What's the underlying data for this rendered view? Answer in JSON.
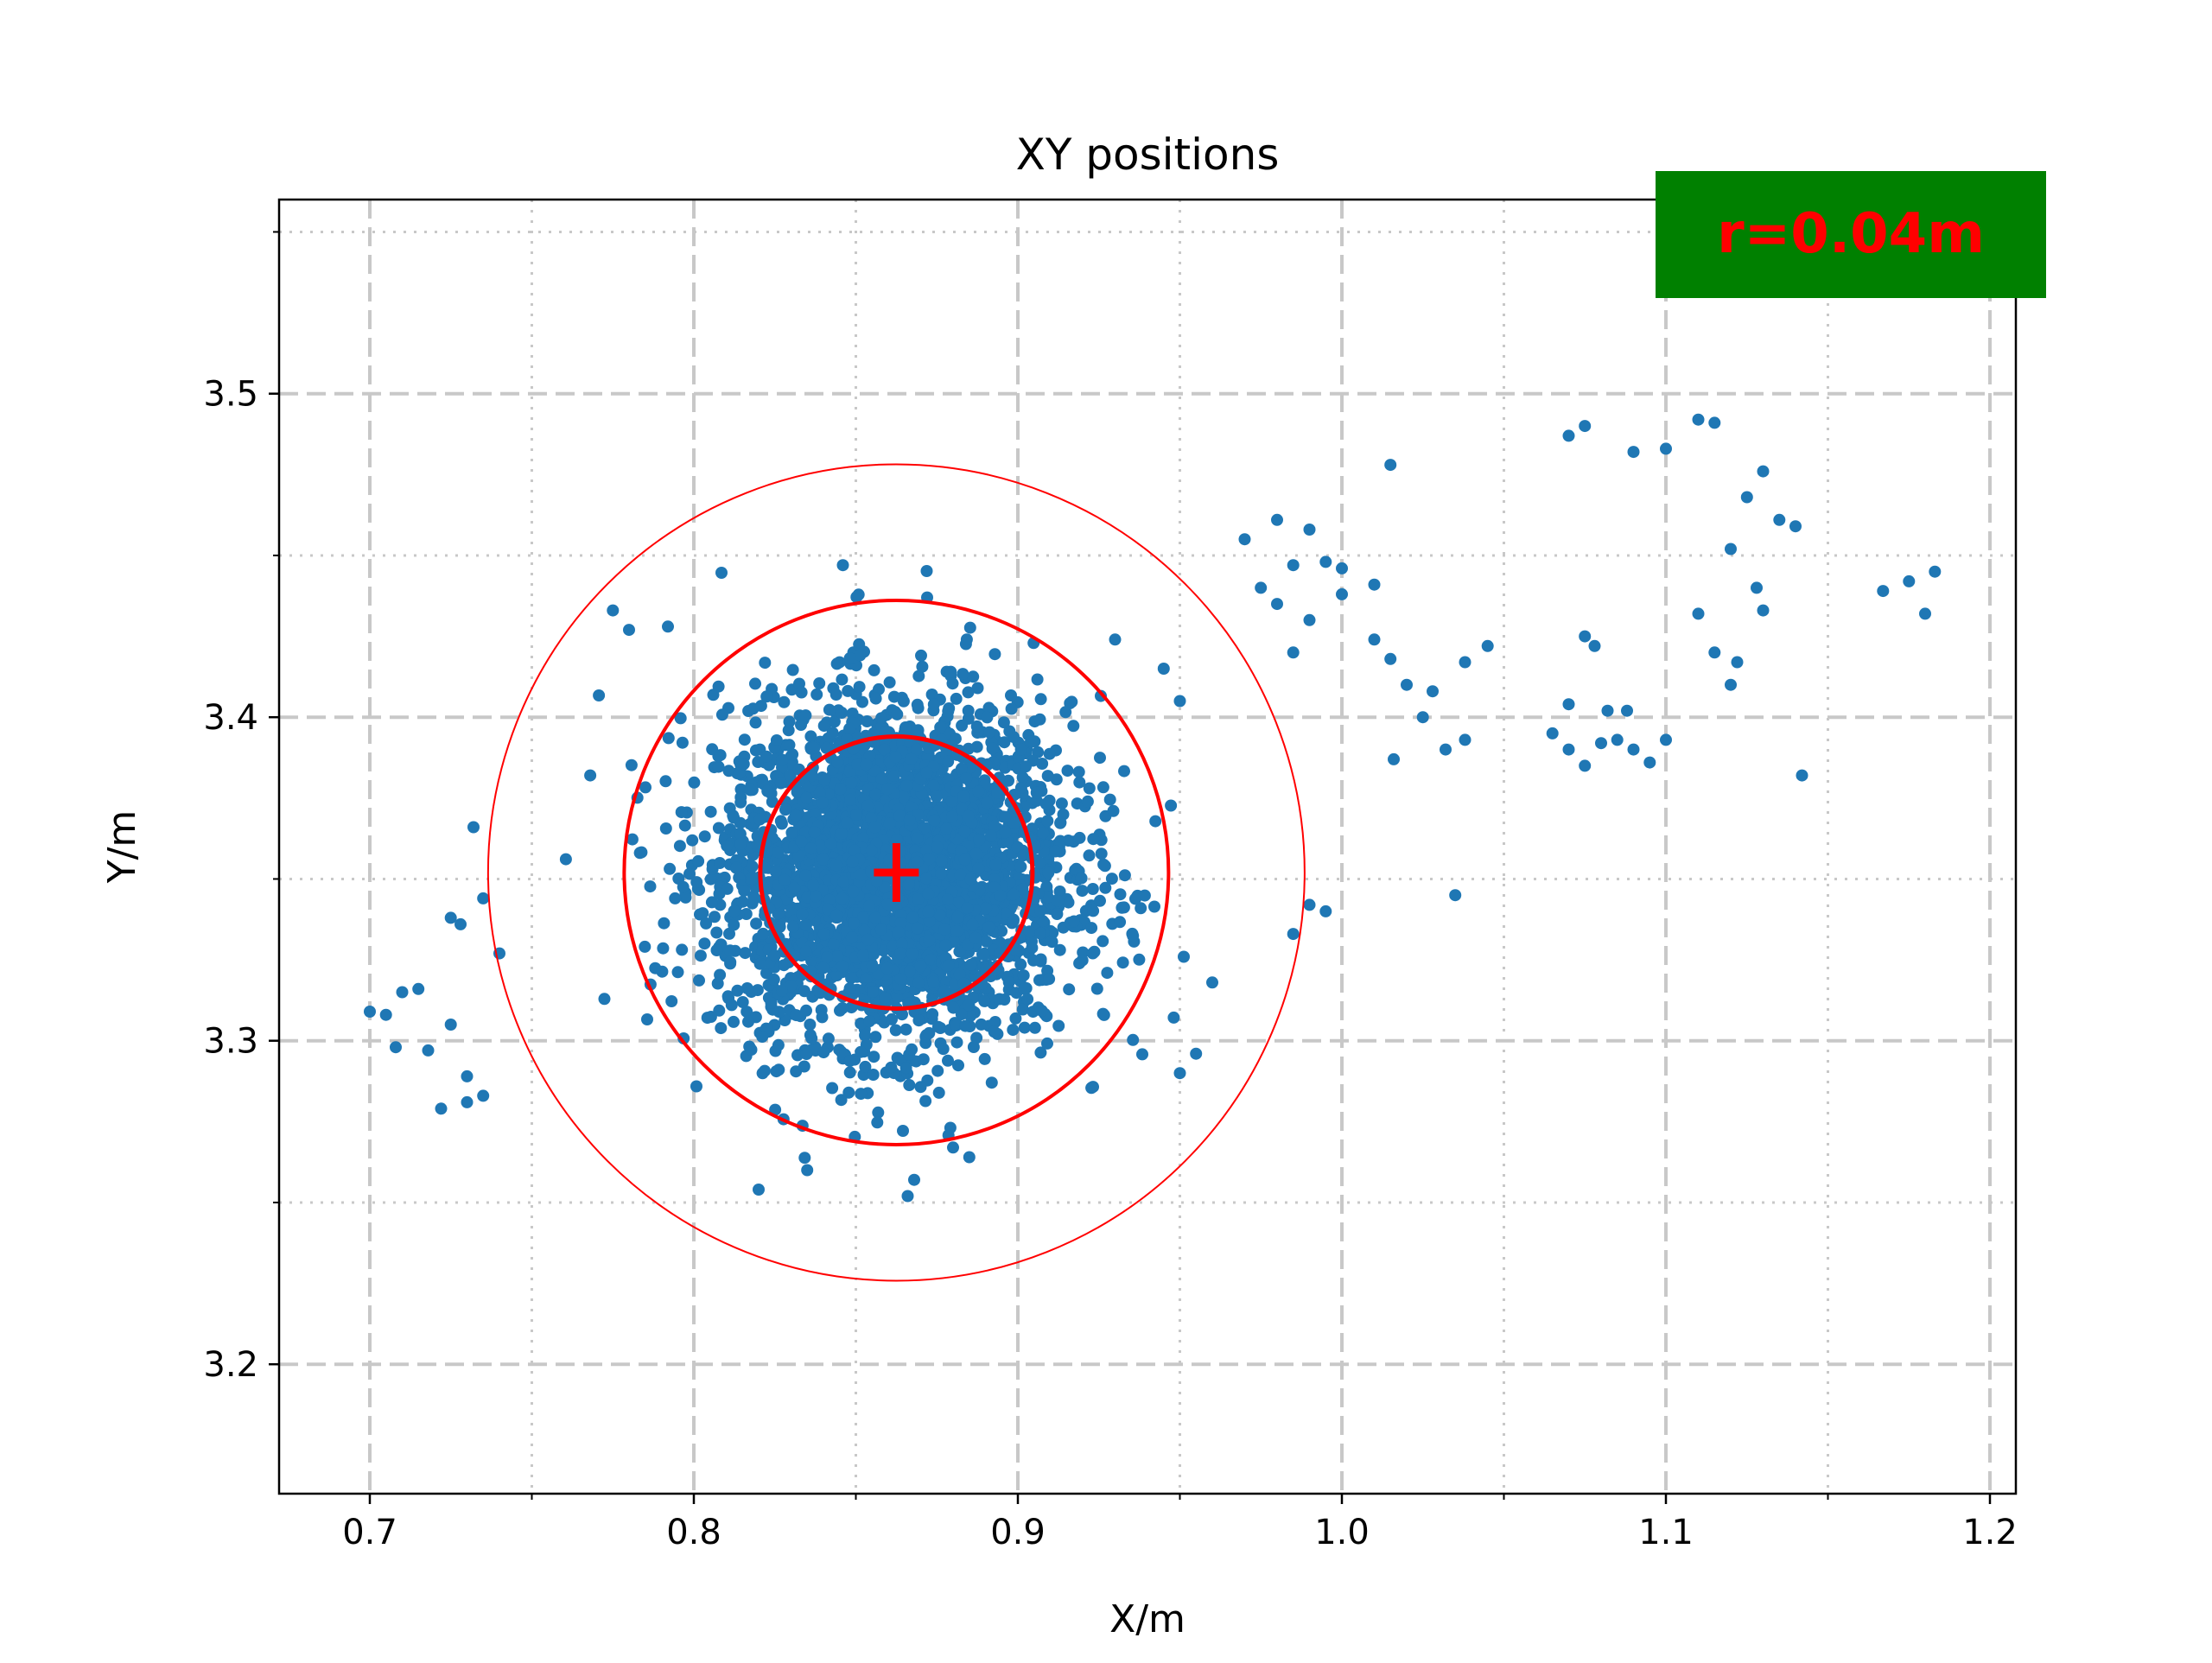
{
  "chart_data": {
    "type": "scatter",
    "title": "XY positions",
    "xlabel": "X/m",
    "ylabel": "Y/m",
    "xlim": [
      0.672,
      1.208
    ],
    "ylim": [
      3.16,
      3.56
    ],
    "x_major_ticks": [
      0.7,
      0.8,
      0.9,
      1.0,
      1.1,
      1.2
    ],
    "x_tick_labels": [
      "0.7",
      "0.8",
      "0.9",
      "1.0",
      "1.1",
      "1.2"
    ],
    "x_minor_ticks": [
      0.75,
      0.85,
      0.95,
      1.05,
      1.15
    ],
    "y_major_ticks": [
      3.2,
      3.3,
      3.4,
      3.5
    ],
    "y_tick_labels": [
      "3.2",
      "3.3",
      "3.4",
      "3.5"
    ],
    "y_minor_ticks": [
      3.25,
      3.35,
      3.45,
      3.55
    ],
    "grid": {
      "major": "dashed",
      "minor": "dotted"
    },
    "series": [
      {
        "color": "#1f77b4",
        "dense_cluster": {
          "center": [
            0.862,
            3.352
          ],
          "sigma_x": 0.027,
          "sigma_y": 0.026,
          "approx_extent_x": [
            0.7,
            0.99
          ],
          "approx_extent_y": [
            3.25,
            3.45
          ]
        },
        "outlier_points": [
          [
            1.015,
            3.478
          ],
          [
            1.075,
            3.49
          ],
          [
            1.07,
            3.487
          ],
          [
            1.09,
            3.482
          ],
          [
            1.11,
            3.492
          ],
          [
            1.115,
            3.491
          ],
          [
            1.1,
            3.483
          ],
          [
            1.13,
            3.476
          ],
          [
            1.125,
            3.468
          ],
          [
            1.135,
            3.461
          ],
          [
            1.14,
            3.459
          ],
          [
            1.12,
            3.452
          ],
          [
            1.128,
            3.44
          ],
          [
            1.167,
            3.439
          ],
          [
            1.175,
            3.442
          ],
          [
            1.183,
            3.445
          ],
          [
            1.18,
            3.432
          ],
          [
            1.142,
            3.382
          ],
          [
            0.97,
            3.455
          ],
          [
            0.98,
            3.461
          ],
          [
            0.99,
            3.458
          ],
          [
            0.985,
            3.447
          ],
          [
            0.995,
            3.448
          ],
          [
            1.0,
            3.446
          ],
          [
            0.975,
            3.44
          ],
          [
            0.98,
            3.435
          ],
          [
            0.99,
            3.43
          ],
          [
            0.985,
            3.42
          ],
          [
            1.0,
            3.438
          ],
          [
            1.01,
            3.441
          ],
          [
            1.01,
            3.424
          ],
          [
            1.015,
            3.418
          ],
          [
            1.02,
            3.41
          ],
          [
            1.028,
            3.408
          ],
          [
            1.038,
            3.417
          ],
          [
            1.045,
            3.422
          ],
          [
            1.025,
            3.4
          ],
          [
            1.032,
            3.39
          ],
          [
            1.038,
            3.393
          ],
          [
            1.016,
            3.387
          ],
          [
            1.035,
            3.345
          ],
          [
            1.065,
            3.395
          ],
          [
            1.07,
            3.39
          ],
          [
            1.075,
            3.385
          ],
          [
            1.08,
            3.392
          ],
          [
            1.085,
            3.393
          ],
          [
            1.09,
            3.39
          ],
          [
            1.095,
            3.386
          ],
          [
            1.082,
            3.402
          ],
          [
            1.088,
            3.402
          ],
          [
            1.07,
            3.404
          ],
          [
            1.078,
            3.422
          ],
          [
            1.075,
            3.425
          ],
          [
            1.11,
            3.432
          ],
          [
            1.115,
            3.42
          ],
          [
            1.12,
            3.41
          ],
          [
            1.1,
            3.393
          ],
          [
            1.13,
            3.433
          ],
          [
            1.122,
            3.417
          ],
          [
            0.99,
            3.342
          ],
          [
            0.995,
            3.34
          ],
          [
            0.985,
            3.333
          ],
          [
            0.7,
            3.309
          ],
          [
            0.705,
            3.308
          ],
          [
            0.71,
            3.315
          ],
          [
            0.715,
            3.316
          ],
          [
            0.708,
            3.298
          ],
          [
            0.718,
            3.297
          ],
          [
            0.725,
            3.305
          ],
          [
            0.73,
            3.289
          ],
          [
            0.735,
            3.283
          ],
          [
            0.722,
            3.279
          ],
          [
            0.73,
            3.281
          ],
          [
            0.725,
            3.338
          ],
          [
            0.728,
            3.336
          ],
          [
            0.735,
            3.344
          ],
          [
            0.732,
            3.366
          ],
          [
            0.74,
            3.327
          ],
          [
            0.82,
            3.254
          ],
          [
            0.835,
            3.26
          ],
          [
            0.866,
            3.252
          ],
          [
            0.868,
            3.257
          ],
          [
            0.885,
            3.264
          ],
          [
            0.88,
            3.267
          ],
          [
            0.775,
            3.433
          ],
          [
            0.78,
            3.427
          ],
          [
            0.792,
            3.428
          ],
          [
            0.846,
            3.447
          ],
          [
            0.872,
            3.437
          ],
          [
            0.93,
            3.424
          ],
          [
            0.945,
            3.415
          ],
          [
            0.95,
            3.405
          ],
          [
            0.955,
            3.296
          ],
          [
            0.96,
            3.318
          ],
          [
            0.95,
            3.29
          ]
        ]
      }
    ],
    "center_marker": {
      "x": 0.8625,
      "y": 3.352,
      "symbol": "+",
      "color": "#ff0000"
    },
    "circles": [
      {
        "cx": 0.8625,
        "cy": 3.352,
        "r": 0.042,
        "color": "#ff0000",
        "weight": "thick"
      },
      {
        "cx": 0.8625,
        "cy": 3.352,
        "r": 0.084,
        "color": "#ff0000",
        "weight": "medium"
      },
      {
        "cx": 0.8625,
        "cy": 3.352,
        "r": 0.126,
        "color": "#ff0000",
        "weight": "thin"
      }
    ],
    "annotation": {
      "text": "r=0.04m",
      "location": "top-right",
      "background": "#008000",
      "text_color": "#ff0000"
    }
  }
}
